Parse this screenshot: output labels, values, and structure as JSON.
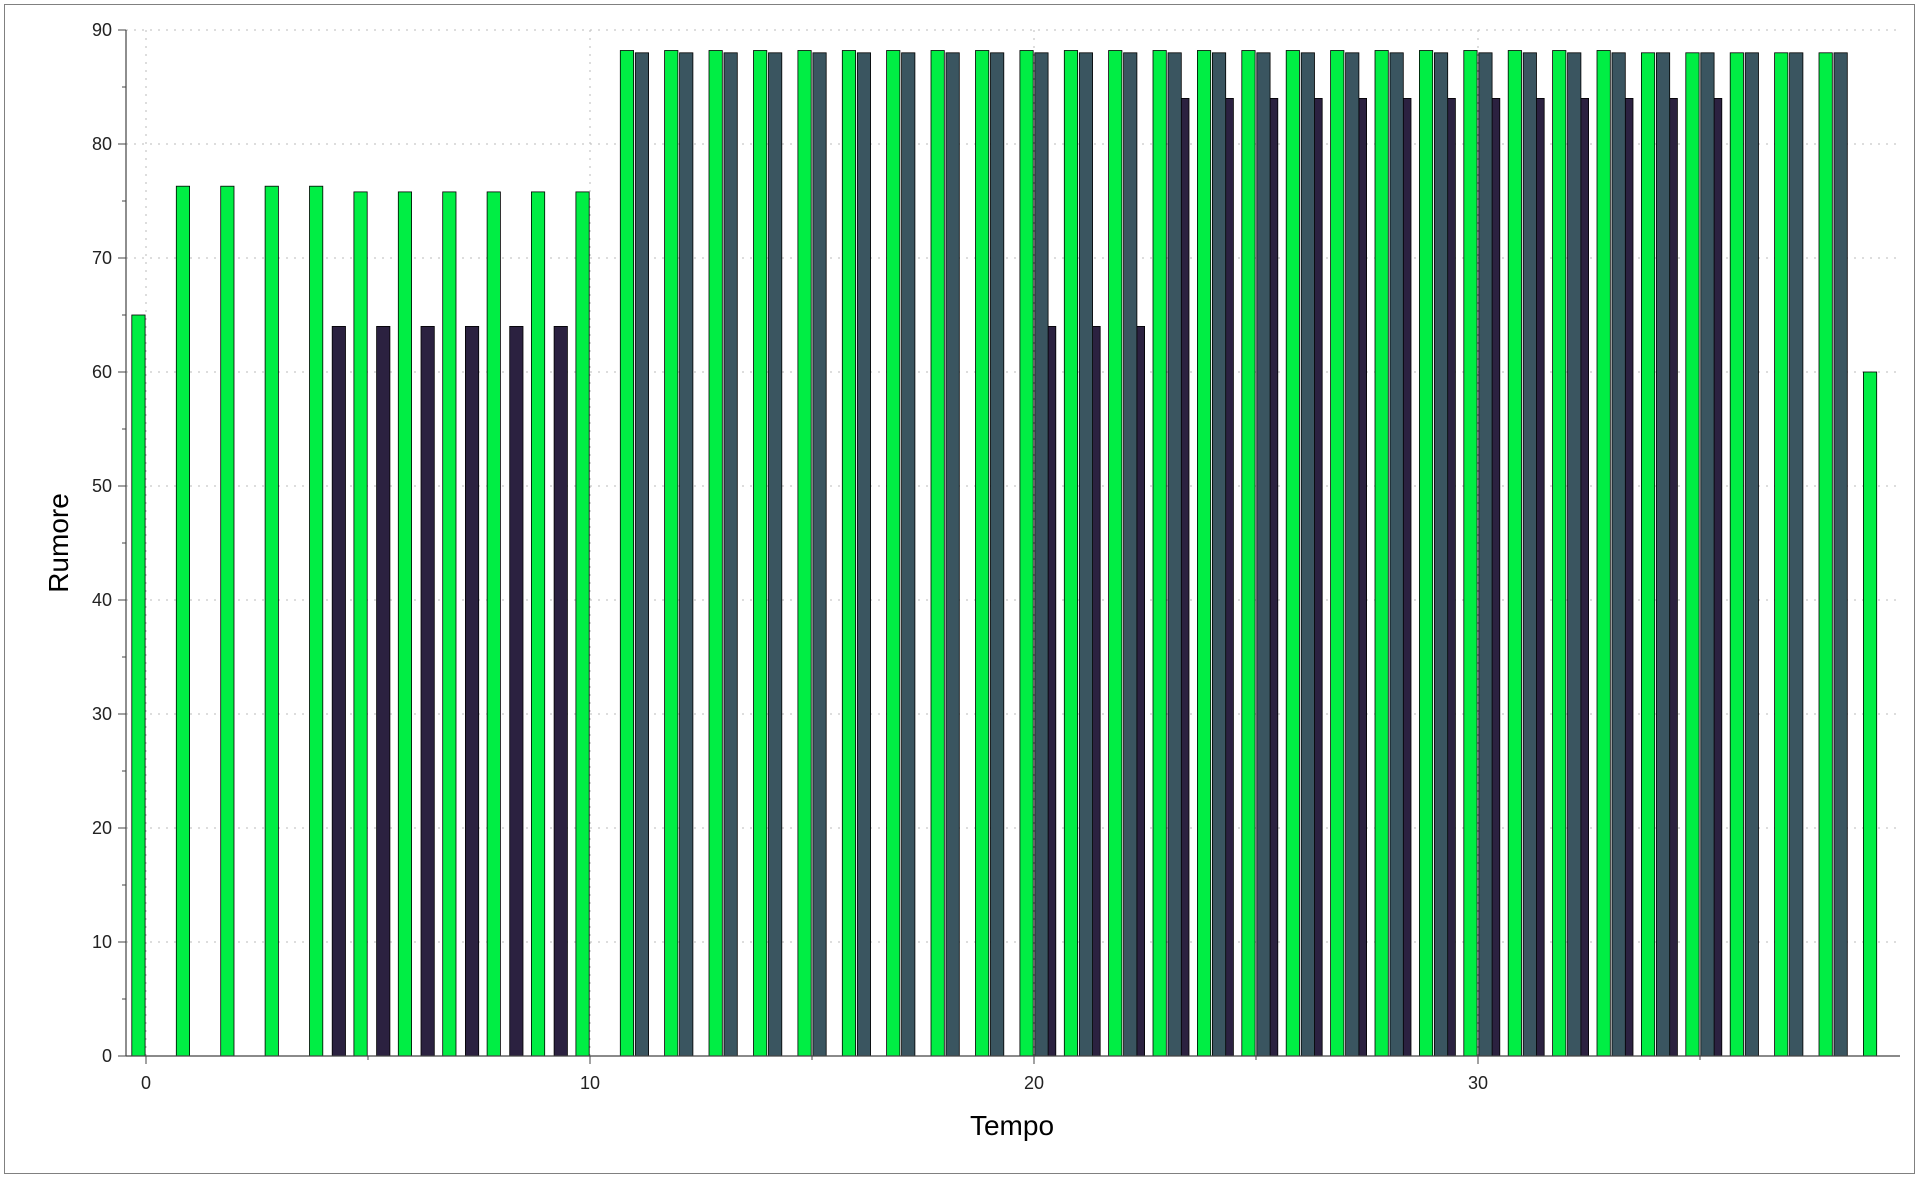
{
  "chart_data": {
    "type": "bar",
    "xlabel": "Tempo",
    "ylabel": "Rumore",
    "xlim": [
      -0.5,
      39
    ],
    "ylim": [
      0,
      90
    ],
    "grid": true,
    "xticks": [
      0,
      10,
      20,
      30
    ],
    "yticks": [
      0,
      10,
      20,
      30,
      40,
      50,
      60,
      70,
      80,
      90
    ],
    "x": [
      0,
      1,
      2,
      3,
      4,
      5,
      6,
      7,
      8,
      9,
      10,
      11,
      12,
      13,
      14,
      15,
      16,
      17,
      18,
      19,
      20,
      21,
      22,
      23,
      24,
      25,
      26,
      27,
      28,
      29,
      30,
      31,
      32,
      33,
      34,
      35,
      36,
      37,
      38,
      39
    ],
    "series": [
      {
        "color": "#00ee44",
        "values": [
          65,
          76.3,
          76.3,
          76.3,
          76.3,
          75.8,
          75.8,
          75.8,
          75.8,
          75.8,
          75.8,
          88.2,
          88.2,
          88.2,
          88.2,
          88.2,
          88.2,
          88.2,
          88.2,
          88.2,
          88.2,
          88.2,
          88.2,
          88.2,
          88.2,
          88.2,
          88.2,
          88.2,
          88.2,
          88.2,
          88.2,
          88.2,
          88.2,
          88.2,
          88,
          88,
          88,
          88,
          88,
          60
        ]
      },
      {
        "color": "#2b2140",
        "values": [
          null,
          null,
          null,
          null,
          null,
          64,
          64,
          64,
          64,
          64,
          64,
          null,
          null,
          null,
          null,
          null,
          null,
          null,
          null,
          null,
          null,
          64,
          64,
          64,
          84,
          84,
          84,
          84,
          84,
          84,
          84,
          84,
          84,
          84,
          84,
          84,
          84,
          null,
          null,
          null
        ]
      },
      {
        "color": "#3a5560",
        "values": [
          null,
          null,
          null,
          null,
          null,
          null,
          null,
          null,
          null,
          null,
          null,
          88,
          88,
          88,
          88,
          88,
          88,
          88,
          88,
          88,
          88,
          88,
          88,
          88,
          88,
          88,
          88,
          88,
          88,
          88,
          88,
          88,
          88,
          88,
          88,
          88,
          88,
          88,
          88,
          null
        ]
      }
    ]
  }
}
